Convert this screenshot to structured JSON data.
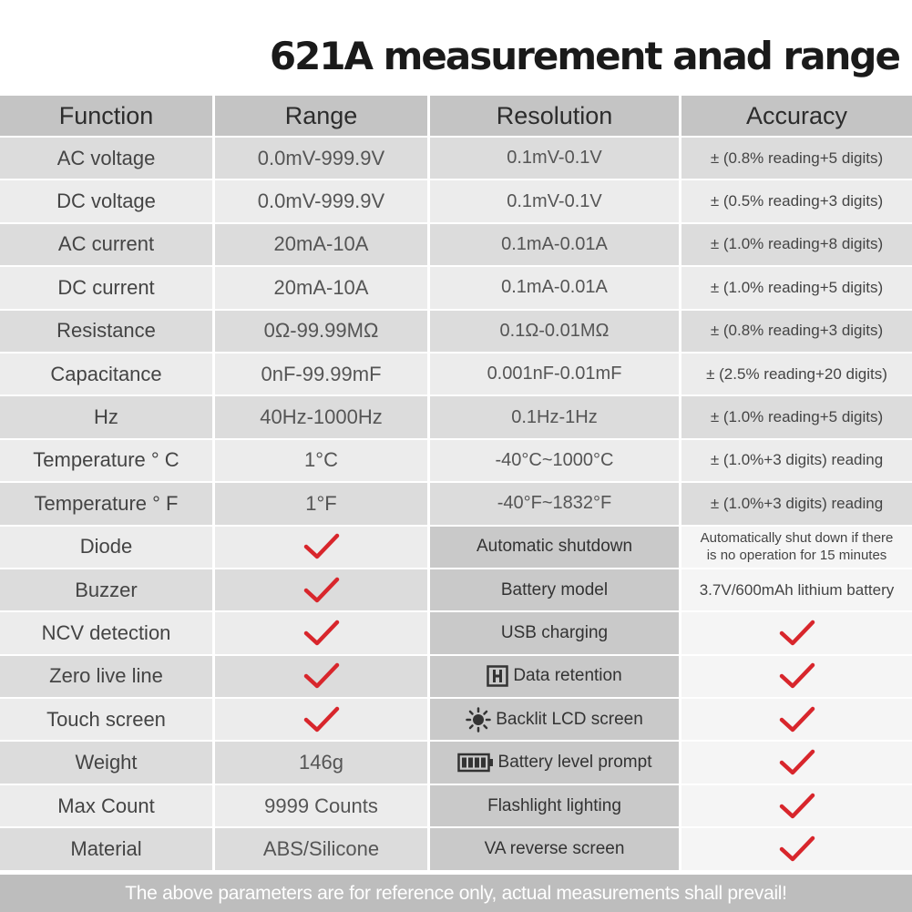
{
  "title": "621A measurement anad range",
  "header": {
    "function": "Function",
    "range": "Range",
    "resolution": "Resolution",
    "accuracy": "Accuracy"
  },
  "rows": [
    {
      "function": "AC voltage",
      "range": "0.0mV-999.9V",
      "resolution": "0.1mV-0.1V",
      "accuracy": "± (0.8% reading+5 digits)"
    },
    {
      "function": "DC voltage",
      "range": "0.0mV-999.9V",
      "resolution": "0.1mV-0.1V",
      "accuracy": "± (0.5% reading+3 digits)"
    },
    {
      "function": "AC current",
      "range": "20mA-10A",
      "resolution": "0.1mA-0.01A",
      "accuracy": "± (1.0% reading+8 digits)"
    },
    {
      "function": "DC current",
      "range": "20mA-10A",
      "resolution": "0.1mA-0.01A",
      "accuracy": "± (1.0% reading+5 digits)"
    },
    {
      "function": "Resistance",
      "range": "0Ω-99.99MΩ",
      "resolution": "0.1Ω-0.01MΩ",
      "accuracy": "± (0.8% reading+3 digits)"
    },
    {
      "function": "Capacitance",
      "range": "0nF-99.99mF",
      "resolution": "0.001nF-0.01mF",
      "accuracy": "± (2.5% reading+20 digits)"
    },
    {
      "function": "Hz",
      "range": "40Hz-1000Hz",
      "resolution": "0.1Hz-1Hz",
      "accuracy": "± (1.0% reading+5 digits)"
    },
    {
      "function": "Temperature ° C",
      "range": "1°C",
      "resolution": "-40°C~1000°C",
      "accuracy": "± (1.0%+3 digits) reading"
    },
    {
      "function": "Temperature ° F",
      "range": "1°F",
      "resolution": "-40°F~1832°F",
      "accuracy": "± (1.0%+3 digits) reading"
    }
  ],
  "feature_rows": [
    {
      "function": "Diode",
      "feature": "Automatic shutdown",
      "value_line1": "Automatically shut down if there",
      "value_line2": "is no operation for 15 minutes"
    },
    {
      "function": "Buzzer",
      "feature": "Battery model",
      "value": "3.7V/600mAh lithium battery"
    },
    {
      "function": "NCV detection",
      "feature": "USB charging"
    },
    {
      "function": "Zero live line",
      "feature": "Data retention",
      "icon": "hold-h-icon"
    },
    {
      "function": "Touch screen",
      "feature": "Backlit LCD screen",
      "icon": "sun-icon"
    },
    {
      "function": "Weight",
      "range": "146g",
      "feature": "Battery level prompt",
      "icon": "battery-icon"
    },
    {
      "function": "Max Count",
      "range": "9999 Counts",
      "feature": "Flashlight lighting"
    },
    {
      "function": "Material",
      "range": "ABS/Silicone",
      "feature": "VA reverse screen"
    }
  ],
  "check_color": "#d8262c",
  "footer": "The above parameters are for reference only, actual measurements shall prevail!"
}
